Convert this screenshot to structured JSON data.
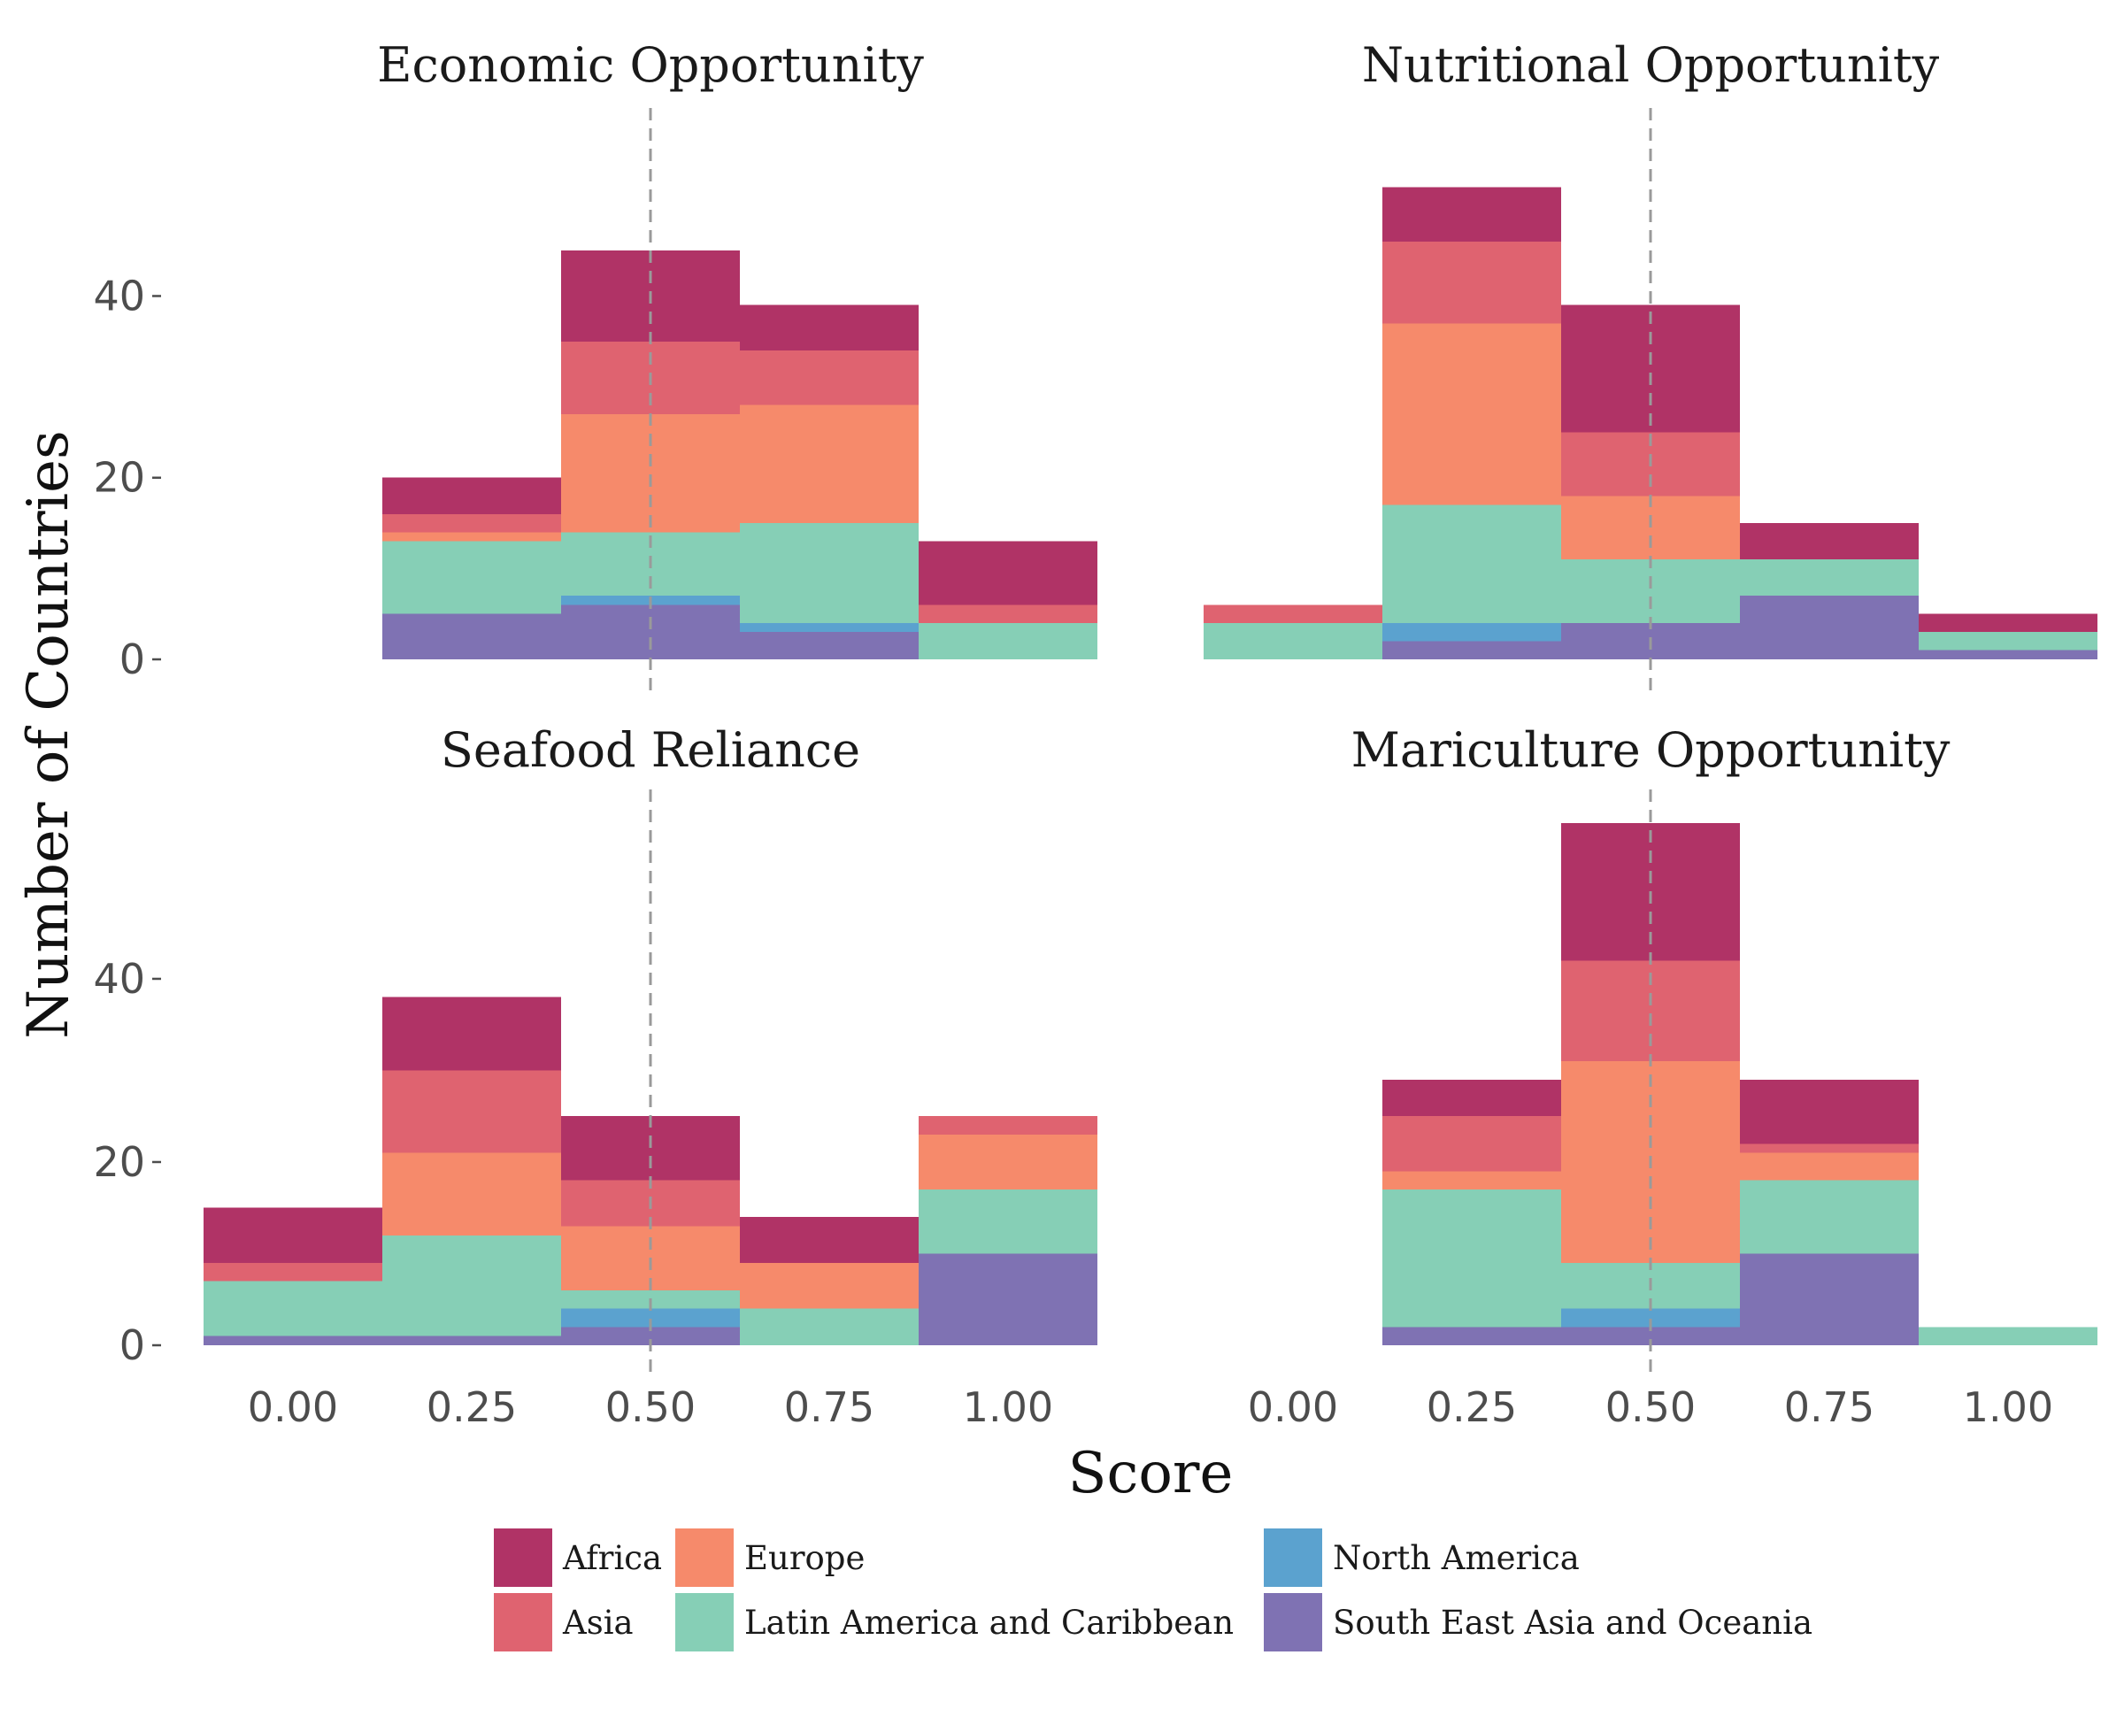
{
  "chart_data": {
    "type": "bar",
    "stacked": true,
    "facet_layout": "2x2",
    "xlabel": "Score",
    "ylabel": "Number of Countries",
    "x_ticks": [
      0.0,
      0.25,
      0.5,
      0.75,
      1.0
    ],
    "x_tick_labels": [
      "0.00",
      "0.25",
      "0.50",
      "0.75",
      "1.00"
    ],
    "y_ticks": [
      0,
      20,
      40
    ],
    "y_tick_labels": [
      "0",
      "20",
      "40"
    ],
    "ylim": [
      0,
      57
    ],
    "xlim": [
      -0.125,
      1.125
    ],
    "bin_width": 0.25,
    "bins": [
      0.0,
      0.25,
      0.5,
      0.75,
      1.0
    ],
    "reference_line_x": 0.5,
    "grid": false,
    "legend_position": "bottom",
    "series_names": [
      "Africa",
      "Asia",
      "Europe",
      "Latin America and Caribbean",
      "North America",
      "South East Asia and Oceania"
    ],
    "series_colors": {
      "Africa": "#b03366",
      "Asia": "#df6370",
      "Europe": "#f68a6b",
      "Latin America and Caribbean": "#86cfb6",
      "North America": "#5ba2cf",
      "South East Asia and Oceania": "#7f72b3"
    },
    "stack_order_bottom_to_top": [
      "South East Asia and Oceania",
      "North America",
      "Latin America and Caribbean",
      "Europe",
      "Asia",
      "Africa"
    ],
    "legend_columns": [
      [
        "Africa",
        "Asia"
      ],
      [
        "Europe",
        "Latin America and Caribbean"
      ],
      [
        "North America",
        "South East Asia and Oceania"
      ]
    ],
    "panels": [
      {
        "title": "Economic Opportunity",
        "series": [
          {
            "name": "South East Asia and Oceania",
            "values": [
              0,
              5,
              6,
              3,
              0
            ]
          },
          {
            "name": "North America",
            "values": [
              0,
              0,
              1,
              1,
              0
            ]
          },
          {
            "name": "Latin America and Caribbean",
            "values": [
              0,
              8,
              7,
              11,
              4
            ]
          },
          {
            "name": "Europe",
            "values": [
              0,
              1,
              13,
              13,
              0
            ]
          },
          {
            "name": "Asia",
            "values": [
              0,
              2,
              8,
              6,
              2
            ]
          },
          {
            "name": "Africa",
            "values": [
              0,
              4,
              10,
              5,
              7
            ]
          }
        ]
      },
      {
        "title": "Nutritional Opportunity",
        "series": [
          {
            "name": "South East Asia and Oceania",
            "values": [
              0,
              2,
              4,
              7,
              1
            ]
          },
          {
            "name": "North America",
            "values": [
              0,
              2,
              0,
              0,
              0
            ]
          },
          {
            "name": "Latin America and Caribbean",
            "values": [
              4,
              13,
              7,
              4,
              2
            ]
          },
          {
            "name": "Europe",
            "values": [
              0,
              20,
              7,
              0,
              0
            ]
          },
          {
            "name": "Asia",
            "values": [
              2,
              9,
              7,
              0,
              0
            ]
          },
          {
            "name": "Africa",
            "values": [
              0,
              6,
              14,
              4,
              2
            ]
          }
        ]
      },
      {
        "title": "Seafood Reliance",
        "series": [
          {
            "name": "South East Asia and Oceania",
            "values": [
              1,
              1,
              2,
              0,
              10
            ]
          },
          {
            "name": "North America",
            "values": [
              0,
              0,
              2,
              0,
              0
            ]
          },
          {
            "name": "Latin America and Caribbean",
            "values": [
              6,
              11,
              2,
              4,
              7
            ]
          },
          {
            "name": "Europe",
            "values": [
              0,
              9,
              7,
              5,
              6
            ]
          },
          {
            "name": "Asia",
            "values": [
              2,
              9,
              5,
              0,
              2
            ]
          },
          {
            "name": "Africa",
            "values": [
              6,
              8,
              7,
              5,
              0
            ]
          }
        ]
      },
      {
        "title": "Mariculture Opportunity",
        "series": [
          {
            "name": "South East Asia and Oceania",
            "values": [
              0,
              2,
              2,
              10,
              0
            ]
          },
          {
            "name": "North America",
            "values": [
              0,
              0,
              2,
              0,
              0
            ]
          },
          {
            "name": "Latin America and Caribbean",
            "values": [
              0,
              15,
              5,
              8,
              2
            ]
          },
          {
            "name": "Europe",
            "values": [
              0,
              2,
              22,
              3,
              0
            ]
          },
          {
            "name": "Asia",
            "values": [
              0,
              6,
              11,
              1,
              0
            ]
          },
          {
            "name": "Africa",
            "values": [
              0,
              4,
              15,
              7,
              0
            ]
          }
        ]
      }
    ]
  }
}
